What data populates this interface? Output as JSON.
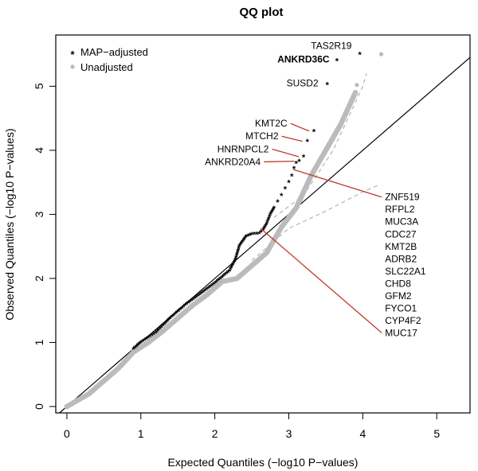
{
  "chart_data": {
    "type": "scatter",
    "title": "QQ plot",
    "xlabel": "Expected Quantiles (−log10 P−values)",
    "ylabel": "Observed Quantiles (−log10 P−values)",
    "xlim": [
      -0.15,
      5.45
    ],
    "ylim": [
      -0.1,
      5.8
    ],
    "x_ticks": [
      "0",
      "1",
      "2",
      "3",
      "4",
      "5"
    ],
    "y_ticks": [
      "0",
      "1",
      "2",
      "3",
      "4",
      "5"
    ],
    "reference_line": "y = x",
    "legend_position": "top-left",
    "series": [
      {
        "name": "MAP−adjusted",
        "marker": "*",
        "color": "#000000",
        "curve": [
          [
            0.9,
            0.9
          ],
          [
            1.0,
            1.0
          ],
          [
            1.2,
            1.15
          ],
          [
            1.4,
            1.38
          ],
          [
            1.6,
            1.58
          ],
          [
            1.8,
            1.75
          ],
          [
            1.95,
            1.88
          ],
          [
            2.1,
            2.02
          ],
          [
            2.2,
            2.12
          ],
          [
            2.28,
            2.3
          ],
          [
            2.33,
            2.5
          ],
          [
            2.42,
            2.65
          ],
          [
            2.5,
            2.69
          ],
          [
            2.6,
            2.7
          ],
          [
            2.65,
            2.75
          ],
          [
            2.7,
            2.85
          ],
          [
            2.75,
            3.0
          ],
          [
            2.8,
            3.1
          ]
        ],
        "points": [
          [
            2.85,
            3.2
          ],
          [
            2.9,
            3.3
          ],
          [
            2.95,
            3.4
          ],
          [
            3.0,
            3.5
          ],
          [
            3.04,
            3.6
          ],
          [
            3.07,
            3.72
          ],
          [
            3.1,
            3.8
          ],
          [
            3.14,
            3.83
          ],
          [
            3.2,
            3.9
          ],
          [
            3.25,
            4.14
          ],
          [
            3.34,
            4.3
          ],
          [
            3.52,
            5.03
          ],
          [
            3.65,
            5.4
          ],
          [
            3.96,
            5.5
          ]
        ]
      },
      {
        "name": "Unadjusted",
        "marker": "dot",
        "color": "#bbbbbb",
        "curve": [
          [
            0.0,
            0.0
          ],
          [
            0.3,
            0.2
          ],
          [
            0.5,
            0.4
          ],
          [
            0.7,
            0.6
          ],
          [
            0.9,
            0.85
          ],
          [
            1.1,
            1.0
          ],
          [
            1.3,
            1.18
          ],
          [
            1.5,
            1.38
          ],
          [
            1.7,
            1.58
          ],
          [
            1.9,
            1.75
          ],
          [
            2.1,
            1.95
          ],
          [
            2.3,
            2.0
          ],
          [
            2.5,
            2.2
          ],
          [
            2.7,
            2.4
          ],
          [
            2.9,
            2.8
          ],
          [
            3.1,
            3.1
          ],
          [
            3.3,
            3.6
          ],
          [
            3.5,
            4.0
          ],
          [
            3.7,
            4.4
          ],
          [
            3.9,
            4.9
          ]
        ],
        "points": [
          [
            3.92,
            5.02
          ],
          [
            4.25,
            5.5
          ]
        ]
      }
    ],
    "bands": [
      {
        "name": "upper",
        "points": [
          [
            2.8,
            2.95
          ],
          [
            3.2,
            3.3
          ],
          [
            3.6,
            4.0
          ],
          [
            3.8,
            4.5
          ],
          [
            4.0,
            5.0
          ],
          [
            4.05,
            5.2
          ]
        ]
      },
      {
        "name": "lower",
        "points": [
          [
            2.5,
            2.28
          ],
          [
            3.0,
            2.78
          ],
          [
            3.5,
            3.05
          ],
          [
            4.0,
            3.35
          ],
          [
            4.2,
            3.45
          ]
        ]
      }
    ],
    "annotations": [
      {
        "text": "TAS2R19",
        "bold": false,
        "point": [
          3.96,
          5.5
        ],
        "label_at": [
          3.85,
          5.58
        ],
        "anchor": "end",
        "leader": false
      },
      {
        "text": "ANKRD36C",
        "bold": true,
        "point": [
          3.65,
          5.4
        ],
        "label_at": [
          3.55,
          5.37
        ],
        "anchor": "end",
        "leader": false
      },
      {
        "text": "SUSD2",
        "bold": false,
        "point": [
          3.52,
          5.03
        ],
        "label_at": [
          3.4,
          5.0
        ],
        "anchor": "end",
        "leader": false
      },
      {
        "text": "KMT2C",
        "bold": false,
        "point": [
          3.34,
          4.3
        ],
        "label_at": [
          2.98,
          4.37
        ],
        "anchor": "end",
        "leader": true
      },
      {
        "text": "MTCH2",
        "bold": false,
        "point": [
          3.25,
          4.14
        ],
        "label_at": [
          2.86,
          4.17
        ],
        "anchor": "end",
        "leader": true
      },
      {
        "text": "HNRNPCL2",
        "bold": false,
        "point": [
          3.2,
          3.9
        ],
        "label_at": [
          2.73,
          3.97
        ],
        "anchor": "end",
        "leader": true
      },
      {
        "text": "ANKRD20A4",
        "bold": false,
        "point": [
          3.14,
          3.83
        ],
        "label_at": [
          2.62,
          3.77
        ],
        "anchor": "end",
        "leader": true
      }
    ],
    "gene_list": {
      "labels": [
        "ZNF519",
        "RFPL2",
        "MUC3A",
        "CDC27",
        "KMT2B",
        "ADRB2",
        "SLC22A1",
        "CHD8",
        "GFM2",
        "FYCO1",
        "CYP4F2",
        "MUC17"
      ],
      "first_y": 3.22,
      "last_y": 1.1,
      "label_x": 4.3,
      "top_connector_from": [
        3.02,
        3.7
      ],
      "bottom_connector_from": [
        2.62,
        2.78
      ]
    }
  }
}
